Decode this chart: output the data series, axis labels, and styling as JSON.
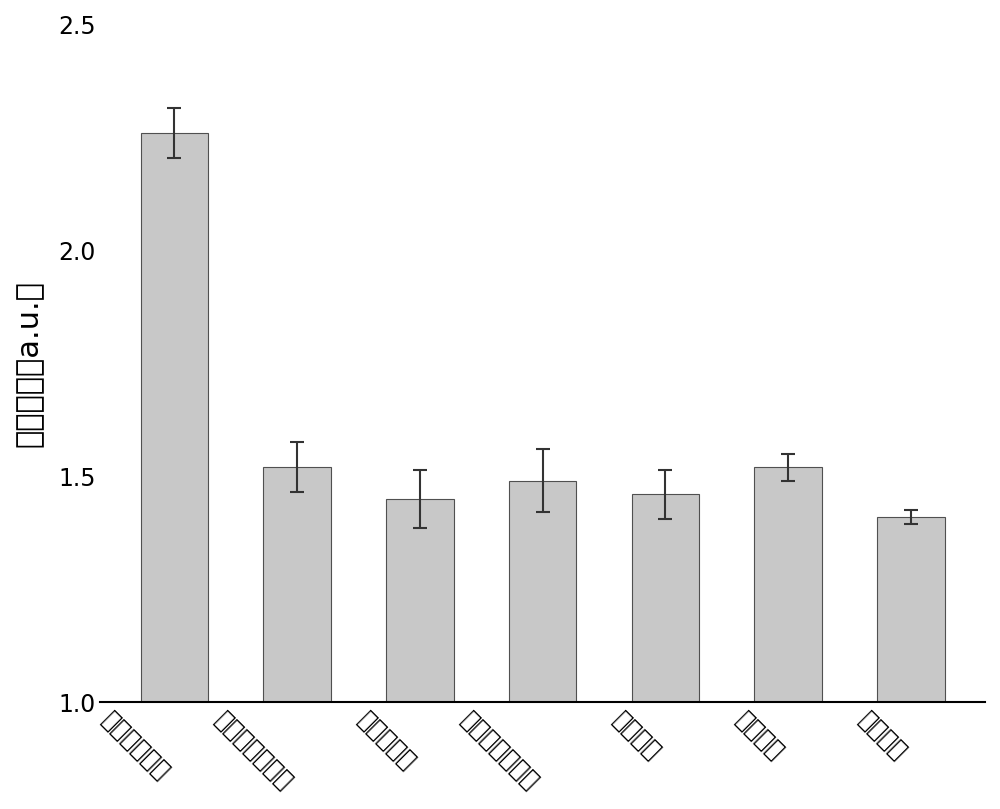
{
  "categories": [
    "磺胺二甲嘧啶",
    "磺胺对甲氧嘧啶",
    "磺胺喹恶啉",
    "磺胺二甲氧嘧啶",
    "呋喃妥因",
    "沙咪珠利",
    "空白对照"
  ],
  "values": [
    2.26,
    1.52,
    1.45,
    1.49,
    1.46,
    1.52,
    1.41
  ],
  "errors": [
    0.055,
    0.055,
    0.065,
    0.07,
    0.055,
    0.03,
    0.015
  ],
  "bar_bottom": 1.0,
  "bar_color": "#C8C8C8",
  "bar_edgecolor": "#505050",
  "ylabel": "荧光强度（a.u.）",
  "ylim": [
    1.0,
    2.5
  ],
  "yticks": [
    1.0,
    1.5,
    2.0,
    2.5
  ],
  "background_color": "#ffffff",
  "bar_width": 0.55,
  "ylabel_fontsize": 22,
  "tick_fontsize": 17,
  "xlabel_rotation": -45
}
